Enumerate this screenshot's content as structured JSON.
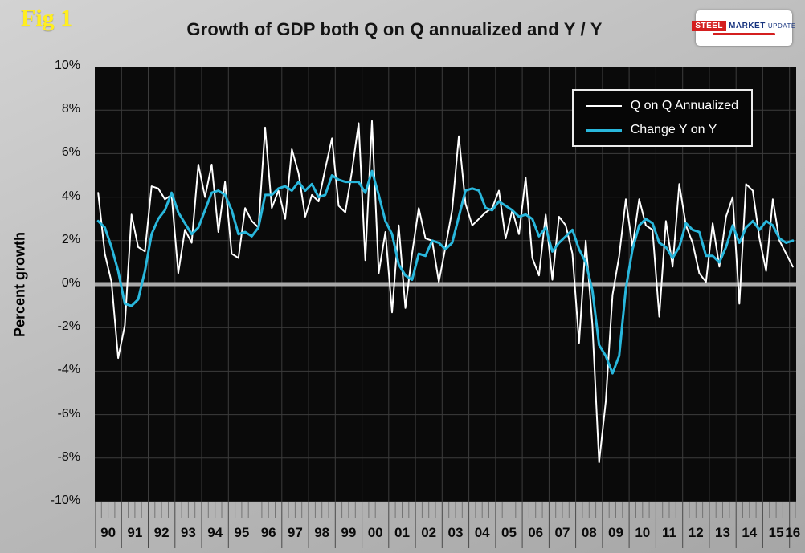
{
  "header": {
    "fig_label": "Fig 1",
    "title": "Growth of GDP both Q on Q annualized and Y / Y",
    "logo": {
      "steel": "STEEL",
      "market": "MARKET",
      "update": "UPDATE"
    }
  },
  "colors": {
    "background": "#b5b5b5",
    "plot_background": "#0a0a0a",
    "gridline": "#3c3c3c",
    "zero_line": "#a9a9a9",
    "qonq_line": "#ffffff",
    "yony_line": "#29b7dc",
    "fig_label": "#ffee1f"
  },
  "chart_data": {
    "type": "line",
    "title": "Growth of GDP both Q on Q annualized and Y / Y",
    "xlabel": "",
    "ylabel": "Percent growth",
    "ylim": [
      -10,
      10
    ],
    "ytick_step": 2,
    "y_tick_labels": [
      "10%",
      "8%",
      "6%",
      "4%",
      "2%",
      "0%",
      "-2%",
      "-4%",
      "-6%",
      "-8%",
      "-10%"
    ],
    "x_labels": [
      "90",
      "91",
      "92",
      "93",
      "94",
      "95",
      "96",
      "97",
      "98",
      "99",
      "00",
      "01",
      "02",
      "03",
      "04",
      "05",
      "06",
      "07",
      "08",
      "09",
      "10",
      "11",
      "12",
      "13",
      "14",
      "15",
      "16"
    ],
    "x_unit": "quarterly points from 1990 Q1 to 2016 Q1",
    "grid": true,
    "legend_position": "top-right",
    "series": [
      {
        "name": "Q on Q Annualized",
        "color": "#ffffff",
        "values": [
          4.2,
          1.4,
          0.1,
          -3.4,
          -1.9,
          3.2,
          1.7,
          1.5,
          4.5,
          4.4,
          3.9,
          4.1,
          0.5,
          2.5,
          1.9,
          5.5,
          4.0,
          5.5,
          2.4,
          4.7,
          1.4,
          1.2,
          3.5,
          2.9,
          2.6,
          7.2,
          3.5,
          4.3,
          3.0,
          6.2,
          5.1,
          3.1,
          4.1,
          3.8,
          5.3,
          6.7,
          3.6,
          3.3,
          5.2,
          7.4,
          1.1,
          7.5,
          0.5,
          2.4,
          -1.3,
          2.7,
          -1.1,
          1.4,
          3.5,
          2.1,
          2.0,
          0.1,
          1.7,
          3.4,
          6.8,
          3.7,
          2.7,
          3.0,
          3.3,
          3.5,
          4.3,
          2.1,
          3.4,
          2.3,
          4.9,
          1.2,
          0.4,
          3.2,
          0.2,
          3.1,
          2.7,
          1.4,
          -2.7,
          2.0,
          -1.9,
          -8.2,
          -5.4,
          -0.5,
          1.3,
          3.9,
          1.7,
          3.9,
          2.7,
          2.5,
          -1.5,
          2.9,
          0.8,
          4.6,
          2.7,
          1.9,
          0.5,
          0.1,
          2.8,
          0.8,
          3.1,
          4.0,
          -0.9,
          4.6,
          4.3,
          2.1,
          0.6,
          3.9,
          2.0,
          1.4,
          0.8
        ]
      },
      {
        "name": "Change Y on Y",
        "color": "#29b7dc",
        "values": [
          2.9,
          2.6,
          1.7,
          0.6,
          -0.9,
          -1.0,
          -0.7,
          0.6,
          2.3,
          3.0,
          3.4,
          4.2,
          3.3,
          2.8,
          2.3,
          2.6,
          3.4,
          4.2,
          4.3,
          4.1,
          3.4,
          2.3,
          2.4,
          2.2,
          2.6,
          4.1,
          4.1,
          4.4,
          4.5,
          4.3,
          4.7,
          4.3,
          4.6,
          4.0,
          4.1,
          5.0,
          4.8,
          4.7,
          4.7,
          4.7,
          4.2,
          5.2,
          4.1,
          2.9,
          2.3,
          0.9,
          0.4,
          0.2,
          1.4,
          1.3,
          2.0,
          1.9,
          1.6,
          1.9,
          3.1,
          4.3,
          4.4,
          4.3,
          3.5,
          3.4,
          3.8,
          3.6,
          3.4,
          3.1,
          3.2,
          3.0,
          2.2,
          2.6,
          1.5,
          1.9,
          2.2,
          2.5,
          1.6,
          1.0,
          -0.3,
          -2.8,
          -3.3,
          -4.1,
          -3.3,
          -0.2,
          1.6,
          2.7,
          3.0,
          2.8,
          1.9,
          1.7,
          1.2,
          1.7,
          2.8,
          2.5,
          2.4,
          1.3,
          1.3,
          1.0,
          1.7,
          2.7,
          1.9,
          2.6,
          2.9,
          2.5,
          2.9,
          2.7,
          2.1,
          1.9,
          2.0
        ]
      }
    ]
  }
}
